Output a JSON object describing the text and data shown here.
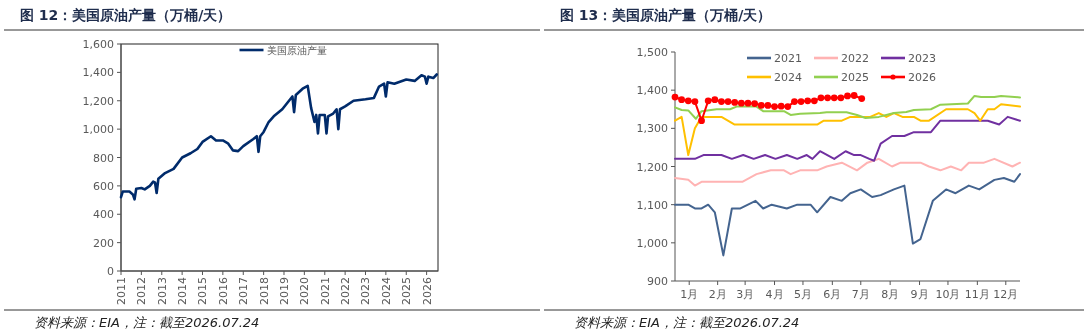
{
  "chart_data": [
    {
      "type": "line",
      "title": "图 12：美国原油产量（万桶/天）",
      "annotations": [
        "资料来源：EIA，注：截至2026.07.24"
      ],
      "legend": "top",
      "grid": false,
      "marker": "none",
      "line_style": "solid",
      "xlim": [
        "2011-01-01",
        "2026-07-24"
      ],
      "xticks": [
        "2011",
        "2012",
        "2013",
        "2014",
        "2015",
        "2016",
        "2017",
        "2018",
        "2019",
        "2020",
        "2021",
        "2022",
        "2023",
        "2024",
        "2025",
        "2026"
      ],
      "ylim": [
        0,
        1600
      ],
      "yticks": [
        0,
        200,
        400,
        600,
        800,
        {
          "value": 1000,
          "label": "1,000"
        },
        {
          "value": 1200,
          "label": "1,200"
        },
        {
          "value": 1400,
          "label": "1,400"
        },
        {
          "value": 1600,
          "label": "1,600"
        }
      ],
      "series": [
        {
          "name": "美国原油产量",
          "color": "#002b6b",
          "x": [
            "2011-01",
            "2011-02",
            "2011-06",
            "2011-08",
            "2011-09",
            "2011-10",
            "2012-01",
            "2012-03",
            "2012-06",
            "2012-08",
            "2012-09",
            "2012-10",
            "2012-11",
            "2013-03",
            "2013-08",
            "2014-01",
            "2014-06",
            "2014-10",
            "2015-01",
            "2015-06",
            "2015-09",
            "2016-01",
            "2016-04",
            "2016-07",
            "2016-10",
            "2017-01",
            "2017-07",
            "2017-09",
            "2017-10",
            "2017-11",
            "2018-01",
            "2018-04",
            "2018-07",
            "2018-12",
            "2019-04",
            "2019-06",
            "2019-07",
            "2019-08",
            "2019-12",
            "2020-03",
            "2020-05",
            "2020-07",
            "2020-08",
            "2020-09",
            "2020-10",
            "2021-01",
            "2021-02",
            "2021-03",
            "2021-06",
            "2021-08",
            "2021-09",
            "2021-10",
            "2022-01",
            "2022-06",
            "2023-01",
            "2023-06",
            "2023-09",
            "2023-12",
            "2024-01",
            "2024-02",
            "2024-06",
            "2025-01",
            "2025-06",
            "2025-10",
            "2025-12",
            "2026-01",
            "2026-02",
            "2026-05",
            "2026-07"
          ],
          "values": [
            520,
            560,
            560,
            540,
            505,
            580,
            585,
            575,
            600,
            630,
            625,
            550,
            650,
            690,
            720,
            800,
            830,
            860,
            910,
            950,
            920,
            920,
            900,
            850,
            845,
            880,
            930,
            950,
            840,
            950,
            980,
            1050,
            1090,
            1140,
            1200,
            1230,
            1120,
            1240,
            1285,
            1305,
            1150,
            1050,
            1100,
            970,
            1100,
            1100,
            970,
            1090,
            1110,
            1140,
            1000,
            1140,
            1160,
            1200,
            1210,
            1220,
            1300,
            1320,
            1230,
            1330,
            1320,
            1350,
            1340,
            1380,
            1370,
            1320,
            1370,
            1360,
            1385
          ]
        }
      ]
    },
    {
      "type": "line",
      "title": "图 13：美国原油产量（万桶/天）",
      "annotations": [
        "资料来源：EIA，注：截至2026.07.24"
      ],
      "legend": "top",
      "grid": false,
      "marker": "none",
      "line_style": "solid",
      "xlim": [
        "--01-01",
        "--12-31"
      ],
      "xticks": [
        {
          "value": "--01-16",
          "label": "1月"
        },
        {
          "value": "--02-15",
          "label": "2月"
        },
        {
          "value": "--03-16",
          "label": "3月"
        },
        {
          "value": "--04-16",
          "label": "4月"
        },
        {
          "value": "--05-16",
          "label": "5月"
        },
        {
          "value": "--06-16",
          "label": "6月"
        },
        {
          "value": "--07-16",
          "label": "7月"
        },
        {
          "value": "--08-16",
          "label": "8月"
        },
        {
          "value": "--09-16",
          "label": "9月"
        },
        {
          "value": "--10-16",
          "label": "10月"
        },
        {
          "value": "--11-16",
          "label": "11月"
        },
        {
          "value": "--12-16",
          "label": "12月"
        }
      ],
      "ylim": [
        900,
        1500
      ],
      "yticks": [
        900,
        {
          "value": 1000,
          "label": "1,000"
        },
        {
          "value": 1100,
          "label": "1,100"
        },
        {
          "value": 1200,
          "label": "1,200"
        },
        {
          "value": 1300,
          "label": "1,300"
        },
        {
          "value": 1400,
          "label": "1,400"
        },
        {
          "value": 1500,
          "label": "1,500"
        }
      ],
      "series": [
        {
          "name": "2021",
          "color": "#44648f",
          "x": [
            "--01-01",
            "--01-15",
            "--01-22",
            "--01-29",
            "--02-05",
            "--02-12",
            "--02-21",
            "--03-02",
            "--03-11",
            "--03-27",
            "--04-04",
            "--04-13",
            "--04-29",
            "--05-10",
            "--05-24",
            "--05-31",
            "--06-14",
            "--06-26",
            "--07-05",
            "--07-16",
            "--07-28",
            "--08-06",
            "--08-20",
            "--08-31",
            "--09-09",
            "--09-17",
            "--09-30",
            "--10-14",
            "--10-24",
            "--11-07",
            "--11-18",
            "--12-04",
            "--12-14",
            "--12-25",
            "--12-31"
          ],
          "values": [
            1100,
            1100,
            1090,
            1090,
            1100,
            1080,
            967,
            1090,
            1090,
            1110,
            1090,
            1100,
            1090,
            1100,
            1100,
            1080,
            1120,
            1110,
            1130,
            1140,
            1120,
            1125,
            1140,
            1150,
            998,
            1010,
            1110,
            1140,
            1130,
            1150,
            1140,
            1165,
            1170,
            1160,
            1180
          ]
        },
        {
          "name": "2022",
          "color": "#ffb3b3",
          "x": [
            "--01-01",
            "--01-15",
            "--01-22",
            "--01-29",
            "--03-13",
            "--03-28",
            "--04-12",
            "--04-26",
            "--05-03",
            "--05-13",
            "--05-31",
            "--06-10",
            "--06-26",
            "--07-12",
            "--07-23",
            "--08-04",
            "--08-18",
            "--08-27",
            "--09-17",
            "--09-26",
            "--10-08",
            "--10-19",
            "--10-30",
            "--11-07",
            "--11-23",
            "--12-04",
            "--12-23",
            "--12-31"
          ],
          "values": [
            1170,
            1165,
            1150,
            1160,
            1160,
            1180,
            1190,
            1190,
            1180,
            1190,
            1190,
            1200,
            1210,
            1190,
            1210,
            1220,
            1200,
            1210,
            1210,
            1200,
            1190,
            1200,
            1190,
            1210,
            1210,
            1220,
            1200,
            1210
          ]
        },
        {
          "name": "2023",
          "color": "#7030a0",
          "x": [
            "--01-01",
            "--01-22",
            "--01-31",
            "--02-19",
            "--03-02",
            "--03-14",
            "--03-25",
            "--04-06",
            "--04-17",
            "--04-29",
            "--05-10",
            "--05-20",
            "--05-26",
            "--06-03",
            "--06-18",
            "--06-30",
            "--07-09",
            "--07-16",
            "--07-25",
            "--07-30",
            "--08-06",
            "--08-18",
            "--08-31",
            "--09-10",
            "--09-28",
            "--10-08",
            "--10-22",
            "--11-27",
            "--12-09",
            "--12-18",
            "--12-31"
          ],
          "values": [
            1220,
            1220,
            1230,
            1230,
            1220,
            1230,
            1220,
            1230,
            1220,
            1230,
            1220,
            1230,
            1220,
            1240,
            1220,
            1240,
            1230,
            1230,
            1220,
            1215,
            1260,
            1280,
            1280,
            1290,
            1290,
            1320,
            1320,
            1320,
            1310,
            1330,
            1320
          ]
        },
        {
          "name": "2024",
          "color": "#ffc000",
          "x": [
            "--01-01",
            "--01-08",
            "--01-15",
            "--01-22",
            "--01-29",
            "--02-19",
            "--03-05",
            "--05-31",
            "--06-07",
            "--06-26",
            "--07-05",
            "--07-26",
            "--08-04",
            "--08-12",
            "--08-20",
            "--08-29",
            "--09-10",
            "--09-17",
            "--09-26",
            "--10-14",
            "--11-06",
            "--11-13",
            "--11-19",
            "--11-27",
            "--12-04",
            "--12-11",
            "--12-31"
          ],
          "values": [
            1320,
            1330,
            1230,
            1300,
            1330,
            1330,
            1310,
            1310,
            1320,
            1320,
            1330,
            1330,
            1340,
            1330,
            1340,
            1330,
            1330,
            1320,
            1320,
            1350,
            1350,
            1340,
            1320,
            1350,
            1350,
            1363,
            1357
          ]
        },
        {
          "name": "2025",
          "color": "#92d050",
          "x": [
            "--01-01",
            "--01-08",
            "--01-15",
            "--01-23",
            "--01-29",
            "--02-14",
            "--02-28",
            "--03-07",
            "--03-28",
            "--04-04",
            "--04-26",
            "--05-03",
            "--05-13",
            "--06-03",
            "--06-10",
            "--07-01",
            "--07-12",
            "--07-21",
            "--08-04",
            "--08-20",
            "--09-02",
            "--09-10",
            "--09-28",
            "--10-08",
            "--11-06",
            "--11-13",
            "--11-20",
            "--12-04",
            "--12-11",
            "--12-31"
          ],
          "values": [
            1355,
            1348,
            1347,
            1325,
            1345,
            1350,
            1350,
            1357,
            1357,
            1345,
            1345,
            1335,
            1338,
            1340,
            1342,
            1342,
            1335,
            1327,
            1330,
            1340,
            1343,
            1348,
            1350,
            1362,
            1365,
            1385,
            1382,
            1382,
            1385,
            1381
          ]
        },
        {
          "name": "2026",
          "color": "#ff0000",
          "marker": "circle",
          "x": [
            "--01-01",
            "--01-08",
            "--01-15",
            "--01-22",
            "--01-29",
            "--02-05",
            "--02-12",
            "--02-19",
            "--02-26",
            "--03-05",
            "--03-12",
            "--03-19",
            "--03-26",
            "--04-02",
            "--04-09",
            "--04-16",
            "--04-23",
            "--04-30",
            "--05-07",
            "--05-14",
            "--05-21",
            "--05-28",
            "--06-04",
            "--06-11",
            "--06-18",
            "--06-25",
            "--07-02",
            "--07-09",
            "--07-17"
          ],
          "values": [
            1382,
            1375,
            1372,
            1370,
            1320,
            1372,
            1375,
            1370,
            1370,
            1368,
            1366,
            1366,
            1365,
            1360,
            1360,
            1357,
            1358,
            1357,
            1370,
            1370,
            1372,
            1372,
            1380,
            1380,
            1380,
            1380,
            1385,
            1386,
            1378
          ]
        }
      ]
    }
  ]
}
